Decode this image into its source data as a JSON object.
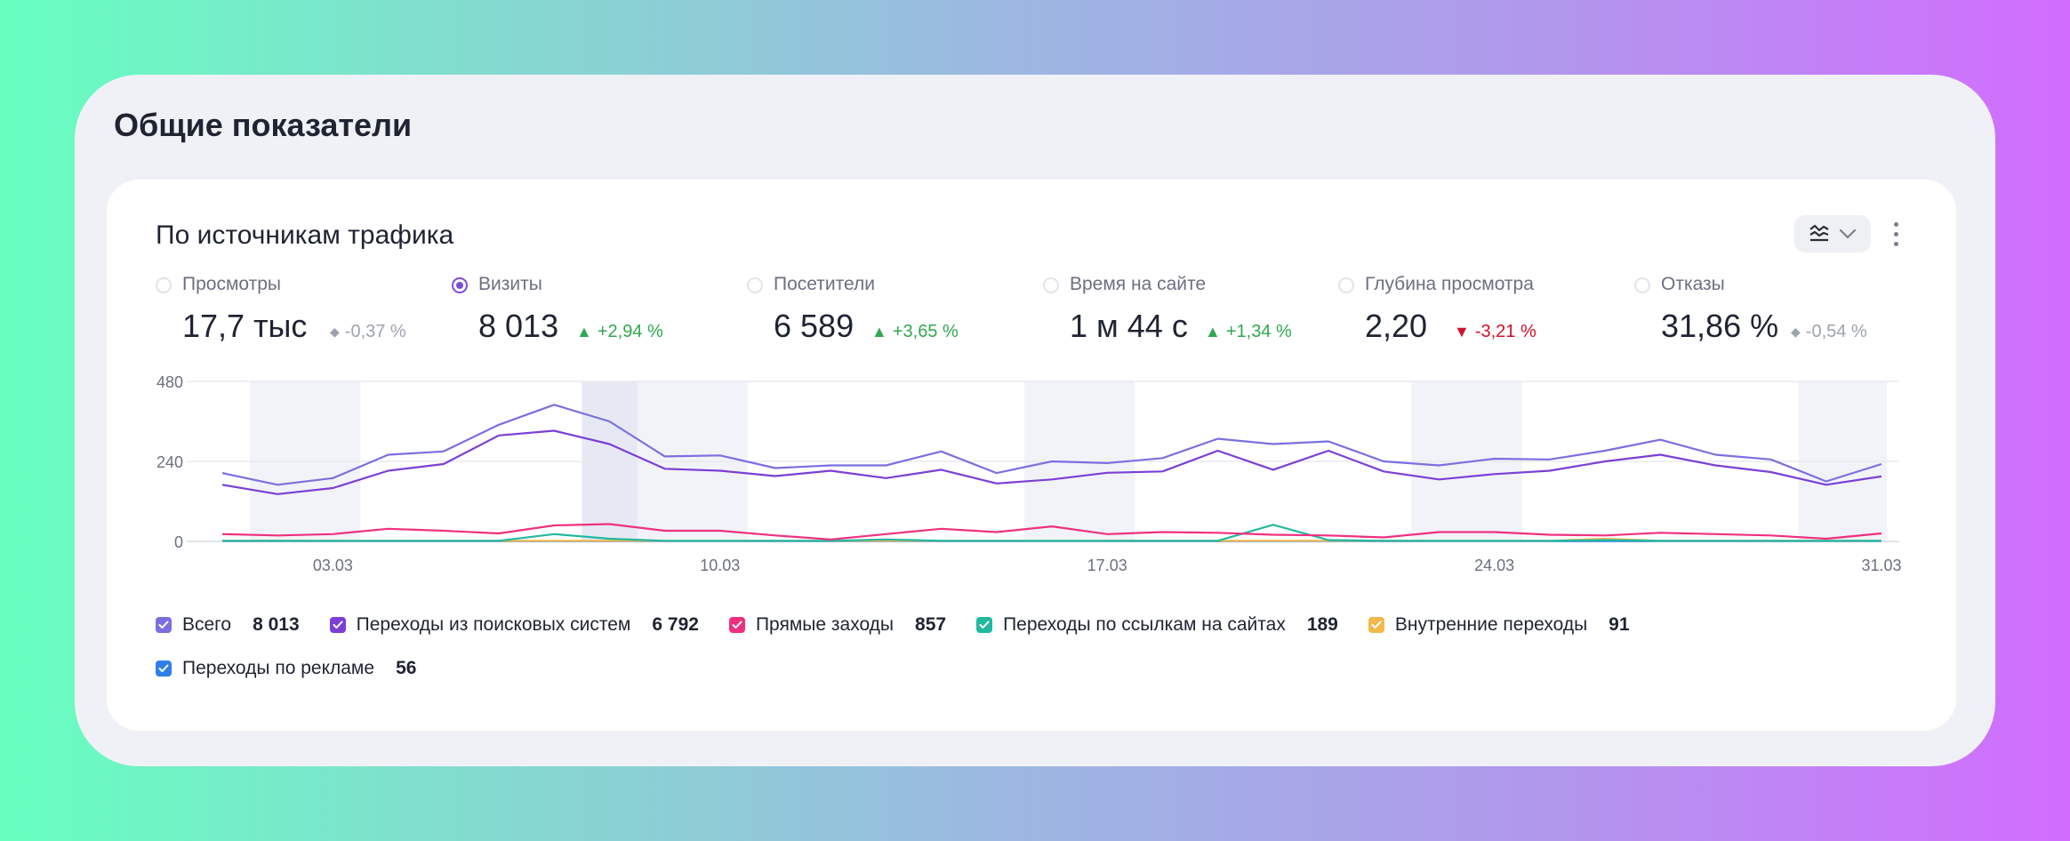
{
  "page_title": "Общие показатели",
  "card_title": "По источникам трафика",
  "metrics": [
    {
      "label": "Просмотры",
      "value": "17,7 тыс",
      "delta": "-0,37 %",
      "trend": "neutral",
      "selected": false
    },
    {
      "label": "Визиты",
      "value": "8 013",
      "delta": "+2,94 %",
      "trend": "up",
      "selected": true
    },
    {
      "label": "Посетители",
      "value": "6 589",
      "delta": "+3,65 %",
      "trend": "up",
      "selected": false
    },
    {
      "label": "Время на сайте",
      "value": "1 м 44 с",
      "delta": "+1,34 %",
      "trend": "up",
      "selected": false
    },
    {
      "label": "Глубина просмотра",
      "value": "2,20",
      "delta": "-3,21 %",
      "trend": "down",
      "selected": false
    },
    {
      "label": "Отказы",
      "value": "31,86 %",
      "delta": "-0,54 %",
      "trend": "neutral",
      "selected": false
    }
  ],
  "legend": [
    {
      "name": "Всего",
      "value": "8 013",
      "color": "#7b6fe0"
    },
    {
      "name": "Переходы из поисковых систем",
      "value": "6 792",
      "color": "#7b3fd6"
    },
    {
      "name": "Прямые заходы",
      "value": "857",
      "color": "#f0307f"
    },
    {
      "name": "Переходы по ссылкам на сайтах",
      "value": "189",
      "color": "#22b8a0"
    },
    {
      "name": "Внутренние переходы",
      "value": "91",
      "color": "#f2b84b"
    },
    {
      "name": "Переходы по рекламе",
      "value": "56",
      "color": "#2f7fe6"
    }
  ],
  "icons": {
    "chart_type": "line-chart-icon",
    "chevron": "chevron-down-icon",
    "more": "more-vertical-icon"
  },
  "chart_data": {
    "type": "line",
    "x": [
      "01.03",
      "02.03",
      "03.03",
      "04.03",
      "05.03",
      "06.03",
      "07.03",
      "08.03",
      "09.03",
      "10.03",
      "11.03",
      "12.03",
      "13.03",
      "14.03",
      "15.03",
      "16.03",
      "17.03",
      "18.03",
      "19.03",
      "20.03",
      "21.03",
      "22.03",
      "23.03",
      "24.03",
      "25.03",
      "26.03",
      "27.03",
      "28.03",
      "29.03",
      "30.03",
      "31.03"
    ],
    "x_ticks": [
      "03.03",
      "10.03",
      "17.03",
      "24.03",
      "31.03"
    ],
    "y_ticks": [
      "0",
      "240",
      "480"
    ],
    "ylim": [
      0,
      480
    ],
    "grid": true,
    "weekend_bands": [
      [
        "02.03",
        "03.03"
      ],
      [
        "09.03",
        "10.03"
      ],
      [
        "16.03",
        "17.03"
      ],
      [
        "23.03",
        "24.03"
      ],
      [
        "30.03",
        "31.03"
      ]
    ],
    "highlighted_band": [
      "08.03",
      "08.03"
    ],
    "series": [
      {
        "name": "Всего",
        "color": "#7b6fe0",
        "values": [
          205,
          170,
          190,
          260,
          270,
          350,
          410,
          360,
          255,
          258,
          220,
          228,
          228,
          270,
          205,
          240,
          235,
          250,
          308,
          292,
          300,
          240,
          228,
          248,
          246,
          272,
          305,
          260,
          246,
          180,
          232
        ]
      },
      {
        "name": "Переходы из поисковых систем",
        "color": "#7b3fd6",
        "values": [
          170,
          142,
          160,
          212,
          232,
          318,
          332,
          292,
          218,
          212,
          196,
          212,
          190,
          215,
          174,
          186,
          206,
          210,
          272,
          215,
          272,
          210,
          186,
          202,
          212,
          240,
          260,
          228,
          208,
          170,
          195
        ]
      },
      {
        "name": "Прямые заходы",
        "color": "#f0307f",
        "values": [
          22,
          18,
          22,
          38,
          32,
          24,
          48,
          52,
          32,
          32,
          18,
          6,
          22,
          38,
          28,
          45,
          22,
          28,
          26,
          20,
          18,
          12,
          28,
          28,
          20,
          18,
          26,
          22,
          18,
          8,
          24
        ]
      },
      {
        "name": "Переходы по ссылкам на сайтах",
        "color": "#22b8a0",
        "values": [
          2,
          2,
          2,
          2,
          2,
          2,
          22,
          8,
          2,
          2,
          2,
          2,
          6,
          2,
          2,
          2,
          2,
          2,
          2,
          50,
          4,
          2,
          2,
          2,
          2,
          4,
          2,
          2,
          2,
          2,
          2
        ]
      },
      {
        "name": "Внутренние переходы",
        "color": "#f2b84b",
        "values": [
          2,
          2,
          2,
          2,
          2,
          2,
          2,
          2,
          2,
          2,
          2,
          2,
          2,
          2,
          2,
          2,
          2,
          2,
          2,
          2,
          2,
          2,
          2,
          2,
          2,
          8,
          2,
          2,
          2,
          2,
          2
        ]
      },
      {
        "name": "Переходы по рекламе",
        "color": "#2f7fe6",
        "values": [
          1,
          1,
          1,
          1,
          1,
          1,
          1,
          1,
          1,
          1,
          1,
          1,
          1,
          1,
          1,
          1,
          1,
          1,
          1,
          1,
          1,
          1,
          1,
          1,
          1,
          1,
          1,
          1,
          1,
          1,
          1
        ]
      }
    ]
  }
}
